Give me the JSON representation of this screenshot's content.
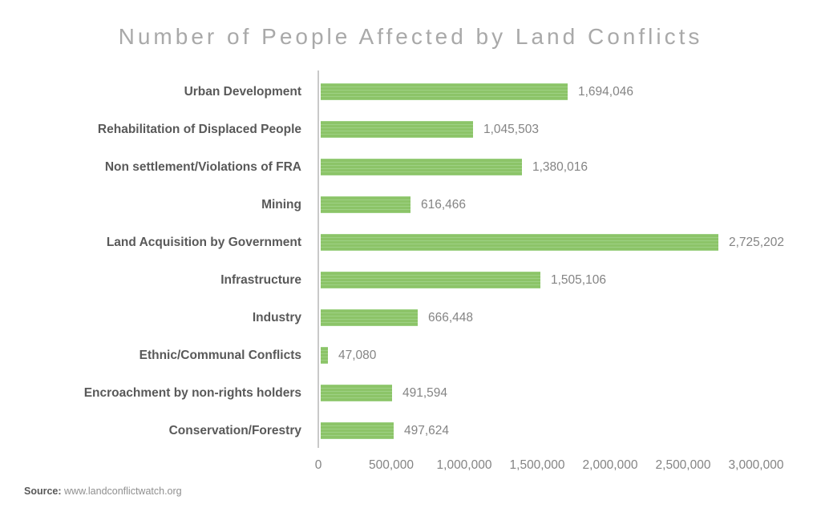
{
  "title": "Number of People Affected by Land Conflicts",
  "source": {
    "label": "Source:",
    "url_text": "www.landconflictwatch.org"
  },
  "colors": {
    "bar": "#8cc468",
    "bar_stripe": "#9ed184",
    "axis_line": "#c9c9c9",
    "title": "#a9a9a9",
    "category_label": "#595959",
    "value_label": "#848484",
    "tick_label": "#848484"
  },
  "chart_data": {
    "type": "bar",
    "orientation": "horizontal",
    "title": "Number of People Affected by Land Conflicts",
    "xlabel": "",
    "ylabel": "",
    "grid": false,
    "legend": false,
    "xlim": [
      0,
      3000000
    ],
    "categories": [
      "Urban Development",
      "Rehabilitation of Displaced People",
      "Non settlement/Violations of FRA",
      "Mining",
      "Land Acquisition by Government",
      "Infrastructure",
      "Industry",
      "Ethnic/Communal Conflicts",
      "Encroachment by non-rights holders",
      "Conservation/Forestry"
    ],
    "values": [
      1694046,
      1045503,
      1380016,
      616466,
      2725202,
      1505106,
      666448,
      47080,
      491594,
      497624
    ],
    "value_labels": [
      "1,694,046",
      "1,045,503",
      "1,380,016",
      "616,466",
      "2,725,202",
      "1,505,106",
      "666,448",
      "47,080",
      "491,594",
      "497,624"
    ],
    "x_ticks": [
      0,
      500000,
      1000000,
      1500000,
      2000000,
      2500000,
      3000000
    ],
    "x_tick_labels": [
      "0",
      "500,000",
      "1,000,000",
      "1,500,000",
      "2,000,000",
      "2,500,000",
      "3,000,000"
    ]
  }
}
